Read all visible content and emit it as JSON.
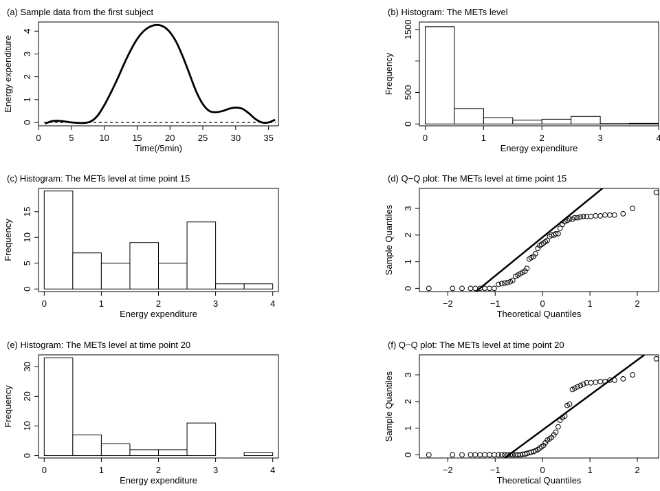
{
  "chart_data": [
    {
      "id": "a",
      "type": "line",
      "title": "(a) Sample data from the first subject",
      "xlabel": "Time(/5min)",
      "ylabel": "Energy expenditure",
      "xlim": [
        0,
        36.5
      ],
      "ylim": [
        -0.15,
        4.4
      ],
      "xticks": [
        0,
        5,
        10,
        15,
        20,
        25,
        30,
        35
      ],
      "yticks": [
        0,
        1,
        2,
        3,
        4
      ],
      "x": [
        1,
        2,
        3,
        4,
        5,
        6,
        7,
        8,
        9,
        10,
        11,
        12,
        13,
        14,
        15,
        16,
        17,
        18,
        19,
        20,
        21,
        22,
        23,
        24,
        25,
        26,
        27,
        28,
        29,
        30,
        31,
        32,
        33,
        34,
        35,
        36
      ],
      "values": [
        -0.05,
        0.05,
        0.07,
        0.04,
        0.0,
        -0.02,
        -0.02,
        0.05,
        0.3,
        0.75,
        1.3,
        1.9,
        2.55,
        3.15,
        3.65,
        4.0,
        4.2,
        4.27,
        4.2,
        3.95,
        3.5,
        2.85,
        2.1,
        1.35,
        0.8,
        0.5,
        0.45,
        0.5,
        0.6,
        0.65,
        0.6,
        0.4,
        0.15,
        0.0,
        0.0,
        0.12
      ],
      "reference_line": {
        "y": 0,
        "style": "dashed"
      },
      "grid": false
    },
    {
      "id": "b",
      "type": "bar",
      "title": "(b) Histogram: The METs level",
      "xlabel": "Energy expenditure",
      "ylabel": "Frequency",
      "xlim": [
        -0.1,
        4.0
      ],
      "ylim": [
        -30,
        1620
      ],
      "xticks": [
        0,
        1,
        2,
        3,
        4
      ],
      "yticks": [
        0,
        500,
        1000,
        1500
      ],
      "ytick_labels": [
        "0",
        "500",
        "",
        "1500"
      ],
      "bins": [
        [
          0,
          0.5
        ],
        [
          0.5,
          1
        ],
        [
          1,
          1.5
        ],
        [
          1.5,
          2
        ],
        [
          2,
          2.5
        ],
        [
          2.5,
          3
        ],
        [
          3,
          3.5
        ],
        [
          3.5,
          4
        ]
      ],
      "values": [
        1545,
        245,
        100,
        60,
        75,
        120,
        5,
        10
      ],
      "grid": false
    },
    {
      "id": "c",
      "type": "bar",
      "title": "(c) Histogram: The METs level at time point 15",
      "xlabel": "Energy expenditure",
      "ylabel": "Frequency",
      "xlim": [
        -0.1,
        4.1
      ],
      "ylim": [
        -0.5,
        19.5
      ],
      "xticks": [
        0,
        1,
        2,
        3,
        4
      ],
      "yticks": [
        0,
        5,
        10,
        15
      ],
      "bins": [
        [
          0,
          0.5
        ],
        [
          0.5,
          1
        ],
        [
          1,
          1.5
        ],
        [
          1.5,
          2
        ],
        [
          2,
          2.5
        ],
        [
          2.5,
          3
        ],
        [
          3,
          3.5
        ],
        [
          3.5,
          4
        ]
      ],
      "values": [
        19,
        7,
        5,
        9,
        5,
        13,
        1,
        1
      ],
      "grid": false
    },
    {
      "id": "d",
      "type": "scatter",
      "title": "(d) Q−Q plot: The METs level at time point 15",
      "xlabel": "Theoretical Quantiles",
      "ylabel": "Sample Quantiles",
      "xlim": [
        -2.6,
        2.45
      ],
      "ylim": [
        -0.12,
        3.75
      ],
      "xticks": [
        -2,
        -1,
        0,
        1,
        2
      ],
      "xtick_labels": [
        "−2",
        "−1",
        "0",
        "1",
        "2"
      ],
      "yticks": [
        0,
        1,
        2,
        3
      ],
      "x": [
        -2.4,
        -1.9,
        -1.7,
        -1.52,
        -1.42,
        -1.32,
        -1.22,
        -1.12,
        -1.02,
        -0.93,
        -0.86,
        -0.8,
        -0.74,
        -0.68,
        -0.63,
        -0.57,
        -0.52,
        -0.47,
        -0.42,
        -0.37,
        -0.33,
        -0.28,
        -0.24,
        -0.19,
        -0.15,
        -0.1,
        -0.06,
        -0.02,
        0.02,
        0.06,
        0.1,
        0.15,
        0.19,
        0.24,
        0.28,
        0.33,
        0.37,
        0.42,
        0.47,
        0.52,
        0.57,
        0.63,
        0.68,
        0.74,
        0.8,
        0.86,
        0.93,
        1.02,
        1.12,
        1.22,
        1.32,
        1.42,
        1.52,
        1.7,
        1.9,
        2.4
      ],
      "values": [
        0,
        0,
        0,
        0,
        0,
        0,
        0,
        0,
        0,
        0.15,
        0.18,
        0.2,
        0.22,
        0.25,
        0.3,
        0.45,
        0.5,
        0.55,
        0.6,
        0.65,
        0.75,
        1.1,
        1.15,
        1.2,
        1.3,
        1.5,
        1.6,
        1.65,
        1.7,
        1.75,
        1.8,
        1.95,
        2.0,
        2.0,
        2.05,
        2.05,
        2.25,
        2.4,
        2.5,
        2.55,
        2.6,
        2.6,
        2.65,
        2.65,
        2.68,
        2.7,
        2.7,
        2.7,
        2.72,
        2.72,
        2.75,
        2.75,
        2.75,
        2.8,
        3.0,
        3.6
      ],
      "qq_line": {
        "x1": -2.6,
        "y1": -1.85,
        "x2": 1.85,
        "y2": 4.6
      },
      "grid": false
    },
    {
      "id": "e",
      "type": "bar",
      "title": "(e) Histogram: The METs level at time point 20",
      "xlabel": "Energy expenditure",
      "ylabel": "Frequency",
      "xlim": [
        -0.1,
        4.1
      ],
      "ylim": [
        -0.8,
        34
      ],
      "xticks": [
        0,
        1,
        2,
        3,
        4
      ],
      "yticks": [
        0,
        10,
        20,
        30
      ],
      "bins": [
        [
          0,
          0.5
        ],
        [
          0.5,
          1
        ],
        [
          1,
          1.5
        ],
        [
          1.5,
          2
        ],
        [
          2,
          2.5
        ],
        [
          2.5,
          3
        ],
        [
          3,
          3.5
        ],
        [
          3.5,
          4
        ]
      ],
      "values": [
        33,
        7,
        4,
        2,
        2,
        11,
        0,
        1
      ],
      "grid": false
    },
    {
      "id": "f",
      "type": "scatter",
      "title": "(f) Q−Q plot: The METs level at time point 20",
      "xlabel": "Theoretical Quantiles",
      "ylabel": "Sample Quantiles",
      "xlim": [
        -2.6,
        2.45
      ],
      "ylim": [
        -0.12,
        3.75
      ],
      "xticks": [
        -2,
        -1,
        0,
        1,
        2
      ],
      "xtick_labels": [
        "−2",
        "−1",
        "0",
        "1",
        "2"
      ],
      "yticks": [
        0,
        1,
        2,
        3
      ],
      "x": [
        -2.4,
        -1.9,
        -1.7,
        -1.52,
        -1.42,
        -1.32,
        -1.22,
        -1.12,
        -1.02,
        -0.93,
        -0.86,
        -0.8,
        -0.74,
        -0.68,
        -0.63,
        -0.57,
        -0.52,
        -0.47,
        -0.42,
        -0.37,
        -0.33,
        -0.28,
        -0.24,
        -0.19,
        -0.15,
        -0.1,
        -0.06,
        -0.02,
        0.02,
        0.06,
        0.1,
        0.15,
        0.19,
        0.24,
        0.28,
        0.33,
        0.37,
        0.42,
        0.47,
        0.52,
        0.57,
        0.63,
        0.68,
        0.74,
        0.8,
        0.86,
        0.93,
        1.02,
        1.12,
        1.22,
        1.32,
        1.42,
        1.52,
        1.7,
        1.9,
        2.4
      ],
      "values": [
        0,
        0,
        0,
        0,
        0,
        0,
        0,
        0,
        0,
        0,
        0,
        0,
        0,
        0,
        0,
        0,
        0,
        0,
        0.02,
        0.03,
        0.05,
        0.08,
        0.1,
        0.12,
        0.15,
        0.2,
        0.25,
        0.3,
        0.35,
        0.45,
        0.55,
        0.6,
        0.65,
        0.75,
        0.85,
        1.05,
        1.3,
        1.4,
        1.45,
        1.85,
        1.9,
        2.45,
        2.5,
        2.55,
        2.6,
        2.65,
        2.7,
        2.7,
        2.72,
        2.75,
        2.75,
        2.8,
        2.8,
        2.85,
        3.0,
        3.6
      ],
      "qq_line": {
        "x1": -0.8,
        "y1": -0.12,
        "x2": 2.15,
        "y2": 3.75
      },
      "grid": false
    }
  ]
}
